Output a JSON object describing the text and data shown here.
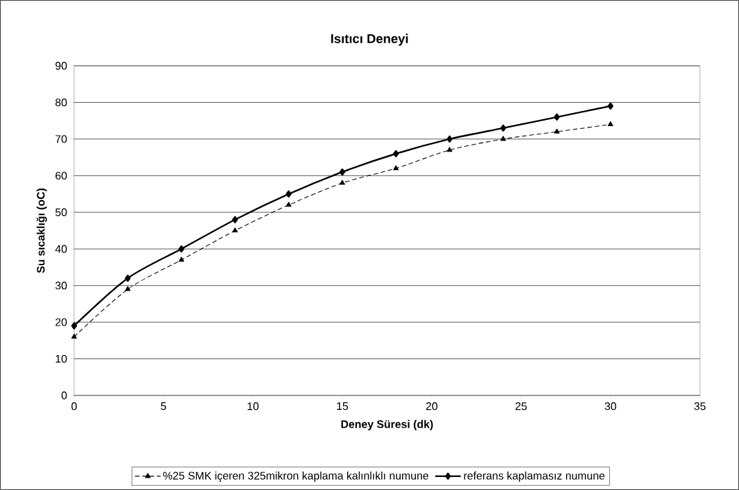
{
  "chart_data": {
    "type": "line",
    "title": "Isıtıcı Deneyi",
    "xlabel": "Deney Süresi (dk)",
    "ylabel": "Su sıcaklığı (oC)",
    "x": [
      0,
      3,
      6,
      9,
      12,
      15,
      18,
      21,
      24,
      27,
      30
    ],
    "series": [
      {
        "name": "%25 SMK içeren 325mikron kaplama kalınlıklı numune",
        "color": "#000000",
        "marker": "triangle",
        "line_style": "dashed",
        "values": [
          16,
          29,
          37,
          45,
          52,
          58,
          62,
          67,
          70,
          72,
          74
        ]
      },
      {
        "name": "referans kaplamasız numune",
        "color": "#000000",
        "marker": "diamond",
        "line_style": "solid",
        "values": [
          19,
          32,
          40,
          48,
          55,
          61,
          66,
          70,
          73,
          76,
          79
        ]
      }
    ],
    "xlim": [
      0,
      35
    ],
    "xticks": [
      0,
      5,
      10,
      15,
      20,
      25,
      30,
      35
    ],
    "ylim": [
      0,
      90
    ],
    "yticks": [
      0,
      10,
      20,
      30,
      40,
      50,
      60,
      70,
      80,
      90
    ],
    "grid": "y",
    "legend": "bottom"
  }
}
